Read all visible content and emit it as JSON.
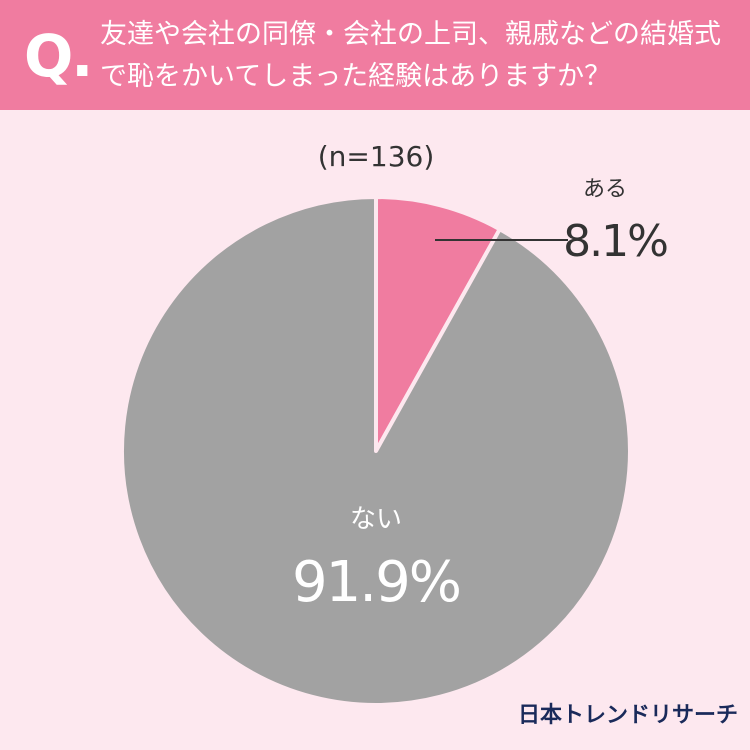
{
  "chart_data": {
    "type": "pie",
    "question_mark": "Q.",
    "title": "友達や会社の同僚・会社の上司、親戚などの結婚式で恥をかいてしまった経験はありますか？",
    "subtitle": "(n=136)",
    "categories": [
      "ある",
      "ない"
    ],
    "values": [
      8.1,
      91.9
    ],
    "value_labels": [
      "8.1%",
      "91.9%"
    ],
    "colors": [
      "#f07ca0",
      "#a2a2a2"
    ],
    "source": "日本トレンドリサーチ"
  }
}
